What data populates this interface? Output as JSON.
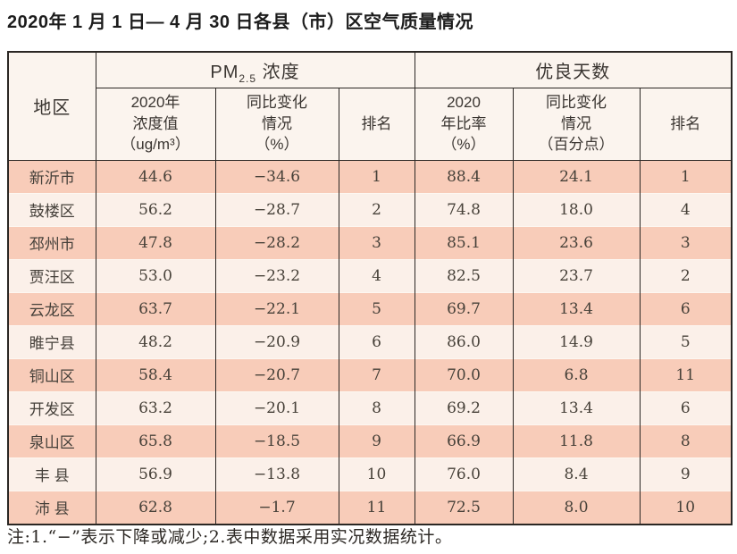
{
  "title": "2020年 1 月 1 日— 4 月 30 日各县（市）区空气质量情况",
  "note": "注:1.“−”表示下降或减少;2.表中数据采用实况数据统计。",
  "table": {
    "region_header": "地区",
    "pm_group": {
      "prefix": "PM",
      "sub": "2.5",
      "suffix": " 浓度"
    },
    "good_group_label": "优良天数",
    "subheaders": {
      "pm_value": "2020年\n浓度值\n（ug/m³）",
      "pm_change": "同比变化\n情况\n（%）",
      "pm_rank": "排名",
      "good_ratio": "2020\n年比率\n（%）",
      "good_change": "同比变化\n情况\n（百分点）",
      "good_rank": "排名"
    },
    "rows": [
      {
        "region": "新沂市",
        "pm_value": "44.6",
        "pm_change": "−34.6",
        "pm_rank": "1",
        "good_ratio": "88.4",
        "good_change": "24.1",
        "good_rank": "1"
      },
      {
        "region": "鼓楼区",
        "pm_value": "56.2",
        "pm_change": "−28.7",
        "pm_rank": "2",
        "good_ratio": "74.8",
        "good_change": "18.0",
        "good_rank": "4"
      },
      {
        "region": "邳州市",
        "pm_value": "47.8",
        "pm_change": "−28.2",
        "pm_rank": "3",
        "good_ratio": "85.1",
        "good_change": "23.6",
        "good_rank": "3"
      },
      {
        "region": "贾汪区",
        "pm_value": "53.0",
        "pm_change": "−23.2",
        "pm_rank": "4",
        "good_ratio": "82.5",
        "good_change": "23.7",
        "good_rank": "2"
      },
      {
        "region": "云龙区",
        "pm_value": "63.7",
        "pm_change": "−22.1",
        "pm_rank": "5",
        "good_ratio": "69.7",
        "good_change": "13.4",
        "good_rank": "6"
      },
      {
        "region": "睢宁县",
        "pm_value": "48.2",
        "pm_change": "−20.9",
        "pm_rank": "6",
        "good_ratio": "86.0",
        "good_change": "14.9",
        "good_rank": "5"
      },
      {
        "region": "铜山区",
        "pm_value": "58.4",
        "pm_change": "−20.7",
        "pm_rank": "7",
        "good_ratio": "70.0",
        "good_change": "6.8",
        "good_rank": "11"
      },
      {
        "region": "开发区",
        "pm_value": "63.2",
        "pm_change": "−20.1",
        "pm_rank": "8",
        "good_ratio": "69.2",
        "good_change": "13.4",
        "good_rank": "6"
      },
      {
        "region": "泉山区",
        "pm_value": "65.8",
        "pm_change": "−18.5",
        "pm_rank": "9",
        "good_ratio": "66.9",
        "good_change": "11.8",
        "good_rank": "8"
      },
      {
        "region": "丰 县",
        "pm_value": "56.9",
        "pm_change": "−13.8",
        "pm_rank": "10",
        "good_ratio": "76.0",
        "good_change": "8.4",
        "good_rank": "9"
      },
      {
        "region": "沛 县",
        "pm_value": "62.8",
        "pm_change": "−1.7",
        "pm_rank": "11",
        "good_ratio": "72.5",
        "good_change": "8.0",
        "good_rank": "10"
      }
    ]
  },
  "colors": {
    "row_odd_bg": "#f8ccb9",
    "row_even_bg": "#fbf0e9",
    "header_bg": "#fbf4ee",
    "border": "#2b2724",
    "text": "#474139"
  },
  "chart_data": {
    "type": "table",
    "title": "2020年1月1日—4月30日各县（市）区空气质量情况",
    "columns": [
      "地区",
      "PM2.5浓度 2020年浓度值（ug/m³）",
      "PM2.5浓度 同比变化情况（%）",
      "PM2.5浓度 排名",
      "优良天数 2020年比率（%）",
      "优良天数 同比变化情况（百分点）",
      "优良天数 排名"
    ],
    "rows": [
      [
        "新沂市",
        44.6,
        -34.6,
        1,
        88.4,
        24.1,
        1
      ],
      [
        "鼓楼区",
        56.2,
        -28.7,
        2,
        74.8,
        18.0,
        4
      ],
      [
        "邳州市",
        47.8,
        -28.2,
        3,
        85.1,
        23.6,
        3
      ],
      [
        "贾汪区",
        53.0,
        -23.2,
        4,
        82.5,
        23.7,
        2
      ],
      [
        "云龙区",
        63.7,
        -22.1,
        5,
        69.7,
        13.4,
        6
      ],
      [
        "睢宁县",
        48.2,
        -20.9,
        6,
        86.0,
        14.9,
        5
      ],
      [
        "铜山区",
        58.4,
        -20.7,
        7,
        70.0,
        6.8,
        11
      ],
      [
        "开发区",
        63.2,
        -20.1,
        8,
        69.2,
        13.4,
        6
      ],
      [
        "泉山区",
        65.8,
        -18.5,
        9,
        66.9,
        11.8,
        8
      ],
      [
        "丰县",
        56.9,
        -13.8,
        10,
        76.0,
        8.4,
        9
      ],
      [
        "沛县",
        62.8,
        -1.7,
        11,
        72.5,
        8.0,
        10
      ]
    ],
    "footnote": "注:1.“−”表示下降或减少;2.表中数据采用实况数据统计。"
  }
}
